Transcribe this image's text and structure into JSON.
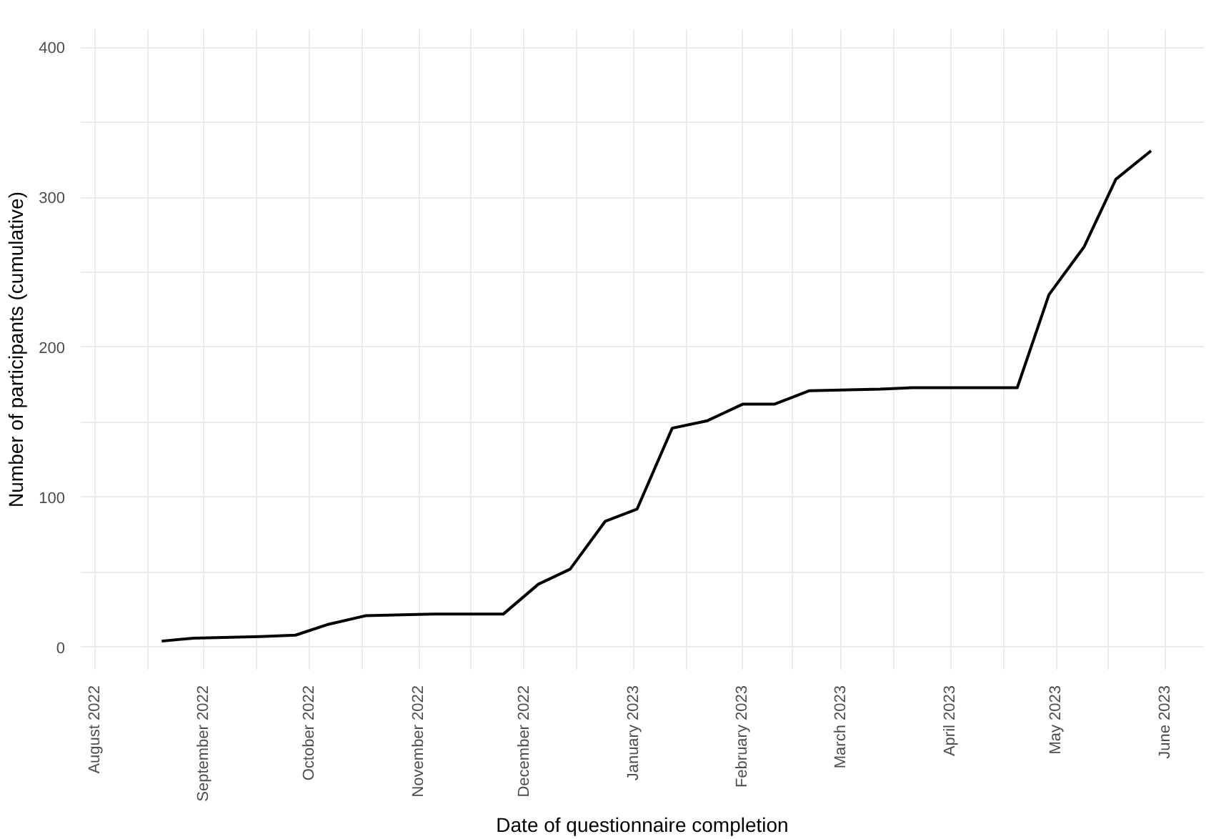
{
  "chart_data": {
    "type": "line",
    "xlabel": "Date of questionnaire completion",
    "ylabel": "Number of participants (cumulative)",
    "x": [
      "2022-08-20",
      "2022-08-29",
      "2022-09-17",
      "2022-09-27",
      "2022-10-06",
      "2022-10-17",
      "2022-11-05",
      "2022-11-25",
      "2022-12-05",
      "2022-12-14",
      "2022-12-24",
      "2023-01-02",
      "2023-01-12",
      "2023-01-22",
      "2023-02-01",
      "2023-02-10",
      "2023-02-20",
      "2023-03-12",
      "2023-03-21",
      "2023-04-20",
      "2023-04-29",
      "2023-05-09",
      "2023-05-18",
      "2023-05-28"
    ],
    "series": [
      {
        "color": "#000000",
        "values": [
          4,
          6,
          7,
          8,
          15,
          21,
          22,
          22,
          42,
          52,
          84,
          92,
          146,
          151,
          162,
          162,
          171,
          172,
          173,
          173,
          235,
          267,
          312,
          331
        ]
      }
    ],
    "xlim": [
      "2022-07-28",
      "2023-06-12"
    ],
    "xticks": [
      {
        "value": "2022-08-01",
        "label": "August 2022"
      },
      {
        "value": "2022-08-16",
        "label": null
      },
      {
        "value": "2022-09-01",
        "label": "September 2022"
      },
      {
        "value": "2022-09-16",
        "label": null
      },
      {
        "value": "2022-10-01",
        "label": "October 2022"
      },
      {
        "value": "2022-10-16",
        "label": null
      },
      {
        "value": "2022-11-01",
        "label": "November 2022"
      },
      {
        "value": "2022-11-16",
        "label": null
      },
      {
        "value": "2022-12-01",
        "label": "December 2022"
      },
      {
        "value": "2022-12-16",
        "label": null
      },
      {
        "value": "2023-01-01",
        "label": "January 2023"
      },
      {
        "value": "2023-01-16",
        "label": null
      },
      {
        "value": "2023-02-01",
        "label": "February 2023"
      },
      {
        "value": "2023-02-15",
        "label": null
      },
      {
        "value": "2023-03-01",
        "label": "March 2023"
      },
      {
        "value": "2023-03-16",
        "label": null
      },
      {
        "value": "2023-04-01",
        "label": "April 2023"
      },
      {
        "value": "2023-04-16",
        "label": null
      },
      {
        "value": "2023-05-01",
        "label": "May 2023"
      },
      {
        "value": "2023-05-16",
        "label": null
      },
      {
        "value": "2023-06-01",
        "label": "June 2023"
      }
    ],
    "ylim": [
      -15,
      412
    ],
    "yticks": [
      0,
      {
        "value": 50,
        "label": null
      },
      100,
      {
        "value": 150,
        "label": null
      },
      200,
      {
        "value": 250,
        "label": null
      },
      300,
      {
        "value": 350,
        "label": null
      },
      400
    ],
    "grid": true,
    "line_style": "solid",
    "marker": "none"
  }
}
